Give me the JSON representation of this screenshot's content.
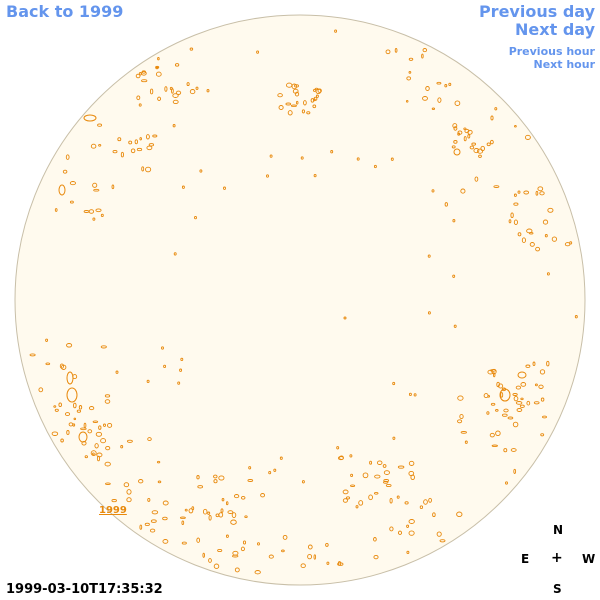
{
  "nav": {
    "back": "Back to 1999",
    "prev_day": "Previous day",
    "next_day": "Next day",
    "prev_hour": "Previous hour",
    "next_hour": "Next hour"
  },
  "colors": {
    "link": "#6495ED",
    "disk_fill": "#FFFAEE",
    "disk_edge": "#C8BFA8",
    "contour": "#E8890C",
    "label": "#E8890C"
  },
  "disk_label": "1999",
  "timestamp": "1999-03-10T17:35:32",
  "compass": {
    "north": "N",
    "east": "E",
    "center": "+",
    "west": "W",
    "south": "S"
  }
}
